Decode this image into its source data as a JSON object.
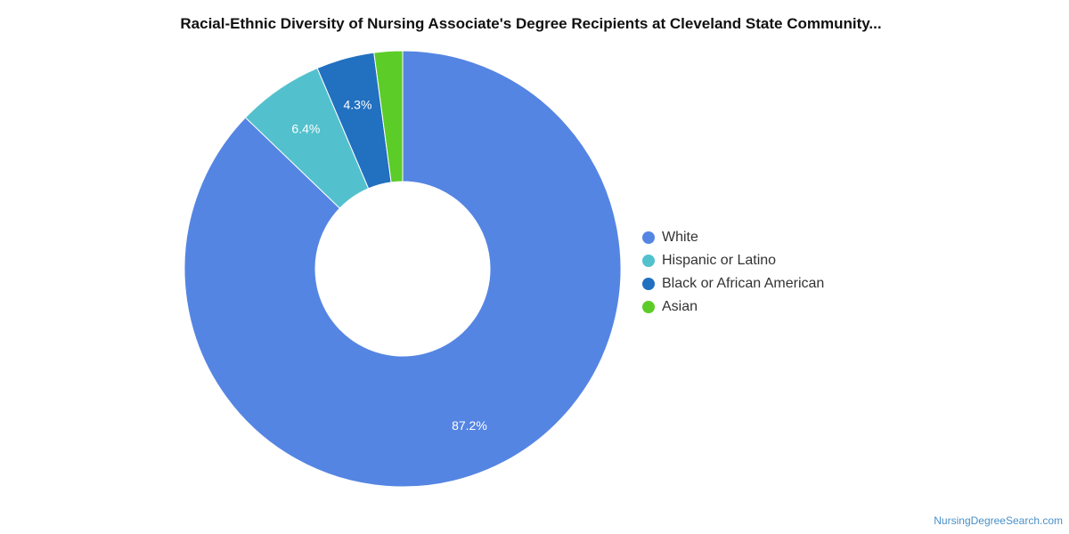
{
  "chart_data": {
    "type": "pie",
    "variant": "donut",
    "title": "Racial-Ethnic Diversity of Nursing Associate's Degree Recipients at Cleveland State Community...",
    "categories": [
      "White",
      "Hispanic or Latino",
      "Black or African American",
      "Asian"
    ],
    "values": [
      87.2,
      6.4,
      4.3,
      2.1
    ],
    "data_labels": [
      "87.2%",
      "6.4%",
      "4.3%",
      ""
    ],
    "colors": [
      "#5585e3",
      "#52c1cd",
      "#2270c0",
      "#5ccc28"
    ],
    "legend_position": "right",
    "unit": "%"
  },
  "watermark": "NursingDegreeSearch.com"
}
